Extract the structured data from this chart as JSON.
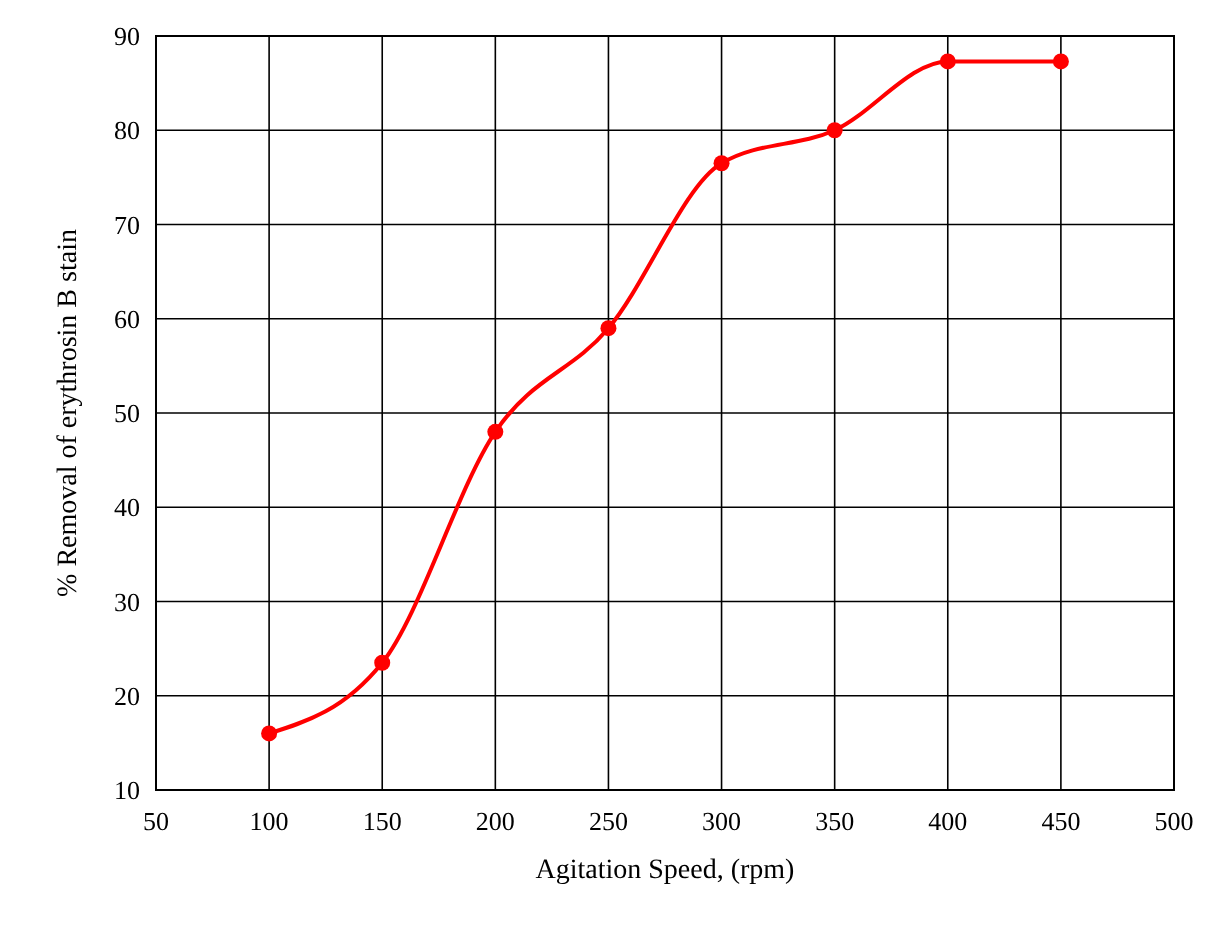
{
  "chart_data": {
    "type": "line",
    "xlabel": "Agitation Speed, (rpm)",
    "ylabel": "% Removal of erythrosin B stain",
    "x": [
      100,
      150,
      200,
      250,
      300,
      350,
      400,
      450
    ],
    "series": [
      {
        "color": "#ff0000",
        "values": [
          16,
          23.5,
          48,
          59,
          76.5,
          80,
          87.3,
          87.3
        ]
      }
    ],
    "xlim": [
      50,
      500
    ],
    "xticks": [
      50,
      100,
      150,
      200,
      250,
      300,
      350,
      400,
      450,
      500
    ],
    "ylim": [
      10,
      90
    ],
    "yticks": [
      10,
      20,
      30,
      40,
      50,
      60,
      70,
      80,
      90
    ],
    "grid": true,
    "marker": "circle",
    "line_style": "solid"
  }
}
